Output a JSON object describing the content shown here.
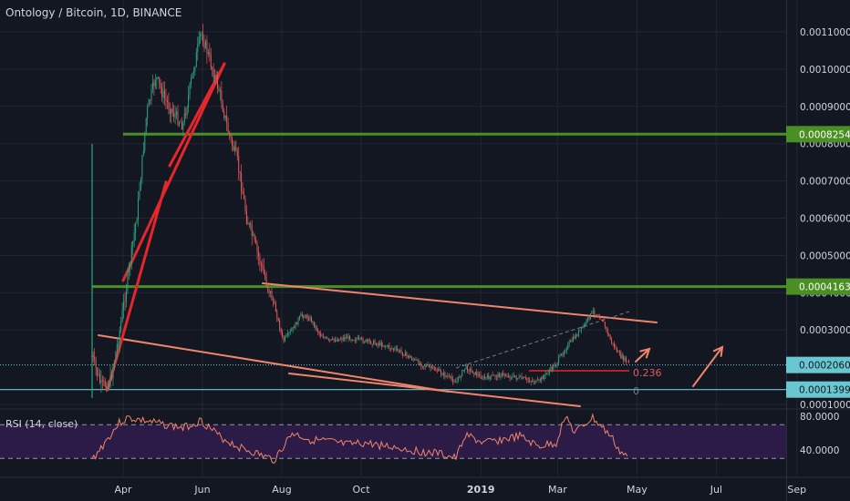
{
  "header": {
    "title": "Ontology / Bitcoin, 1D, BINANCE"
  },
  "colors": {
    "bg": "#131722",
    "grid": "#232732",
    "up": "#2fa37f",
    "down": "#e35a5a",
    "green_level": "#4a8f23",
    "orange_line": "#f0856b",
    "red_line": "#e5262a",
    "cyan": "#69c7d1",
    "rsi": "#f0856b",
    "rsi_fill": "#2b1b46",
    "axis_text": "#d1d4dc"
  },
  "chart_data": [
    {
      "type": "candlestick",
      "title": "Ontology / Bitcoin, 1D, BINANCE",
      "ylim": [
        0.0001,
        0.00118
      ],
      "y_ticks": [
        "0.0011000",
        "0.0010000",
        "0.0009000",
        "0.0008000",
        "0.0007000",
        "0.0006000",
        "0.0005000",
        "0.0004000",
        "0.0003000",
        "0.0001000"
      ],
      "x_ticks": [
        "Apr",
        "Jun",
        "Aug",
        "Oct",
        "2019",
        "Mar",
        "May",
        "Jul",
        "Sep"
      ],
      "price_path": [
        [
          "2018-03-08",
          0.00023
        ],
        [
          "2018-03-15",
          0.00015
        ],
        [
          "2018-03-22",
          0.00016
        ],
        [
          "2018-03-29",
          0.00029
        ],
        [
          "2018-04-05",
          0.00045
        ],
        [
          "2018-04-12",
          0.00062
        ],
        [
          "2018-04-19",
          0.00088
        ],
        [
          "2018-04-26",
          0.00098
        ],
        [
          "2018-05-03",
          0.00092
        ],
        [
          "2018-05-10",
          0.00088
        ],
        [
          "2018-05-17",
          0.00085
        ],
        [
          "2018-05-24",
          0.00098
        ],
        [
          "2018-05-31",
          0.0011
        ],
        [
          "2018-06-07",
          0.00102
        ],
        [
          "2018-06-14",
          0.00094
        ],
        [
          "2018-06-21",
          0.00083
        ],
        [
          "2018-06-28",
          0.00075
        ],
        [
          "2018-07-05",
          0.0006
        ],
        [
          "2018-07-12",
          0.00052
        ],
        [
          "2018-07-19",
          0.00044
        ],
        [
          "2018-07-26",
          0.00037
        ],
        [
          "2018-08-02",
          0.00027
        ],
        [
          "2018-08-09",
          0.0003
        ],
        [
          "2018-08-16",
          0.00034
        ],
        [
          "2018-08-23",
          0.00033
        ],
        [
          "2018-08-30",
          0.00029
        ],
        [
          "2018-09-06",
          0.00027
        ],
        [
          "2018-09-20",
          0.00028
        ],
        [
          "2018-10-04",
          0.00027
        ],
        [
          "2018-10-18",
          0.00026
        ],
        [
          "2018-11-01",
          0.00024
        ],
        [
          "2018-11-15",
          0.00021
        ],
        [
          "2018-11-29",
          0.00019
        ],
        [
          "2018-12-13",
          0.00016
        ],
        [
          "2018-12-20",
          0.0002
        ],
        [
          "2019-01-03",
          0.00017
        ],
        [
          "2019-01-17",
          0.00018
        ],
        [
          "2019-01-31",
          0.00017
        ],
        [
          "2019-02-14",
          0.00016
        ],
        [
          "2019-02-28",
          0.00021
        ],
        [
          "2019-03-07",
          0.00025
        ],
        [
          "2019-03-14",
          0.00028
        ],
        [
          "2019-03-21",
          0.00031
        ],
        [
          "2019-03-28",
          0.00035
        ],
        [
          "2019-04-04",
          0.00033
        ],
        [
          "2019-04-11",
          0.00027
        ],
        [
          "2019-04-18",
          0.00023
        ],
        [
          "2019-04-25",
          0.00021
        ]
      ],
      "price_labels": [
        {
          "text": "0.0008254",
          "value": 0.0008254,
          "color": "#4a8f23"
        },
        {
          "text": "0.0004163",
          "value": 0.0004163,
          "color": "#4a8f23"
        },
        {
          "text": "0.0002060",
          "value": 0.000206,
          "color": "#69c7d1"
        },
        {
          "text": "0.0001399",
          "value": 0.0001399,
          "color": "#69c7d1"
        }
      ],
      "annotations": [
        {
          "text": "0.236",
          "color": "#e35a5a"
        },
        {
          "text": "0",
          "color": "#787b86"
        }
      ]
    },
    {
      "type": "line",
      "title": "RSI (14, close)",
      "ylim": [
        20,
        90
      ],
      "y_ticks": [
        "80.0000",
        "40.0000"
      ],
      "levels": [
        70,
        30
      ],
      "x": [
        "2018-03-08",
        "2018-03-29",
        "2018-04-05",
        "2018-04-19",
        "2018-05-03",
        "2018-05-17",
        "2018-05-31",
        "2018-06-14",
        "2018-06-28",
        "2018-07-12",
        "2018-07-26",
        "2018-08-09",
        "2018-08-23",
        "2018-09-06",
        "2018-09-20",
        "2018-10-04",
        "2018-10-18",
        "2018-11-01",
        "2018-11-15",
        "2018-11-29",
        "2018-12-13",
        "2018-12-20",
        "2019-01-03",
        "2019-01-17",
        "2019-01-31",
        "2019-02-14",
        "2019-02-28",
        "2019-03-07",
        "2019-03-14",
        "2019-03-28",
        "2019-04-11",
        "2019-04-18",
        "2019-04-25"
      ],
      "y": [
        28,
        72,
        78,
        74,
        70,
        66,
        75,
        56,
        44,
        36,
        28,
        60,
        52,
        50,
        46,
        48,
        45,
        42,
        38,
        36,
        30,
        58,
        48,
        52,
        56,
        44,
        48,
        82,
        60,
        78,
        56,
        38,
        30
      ]
    }
  ]
}
